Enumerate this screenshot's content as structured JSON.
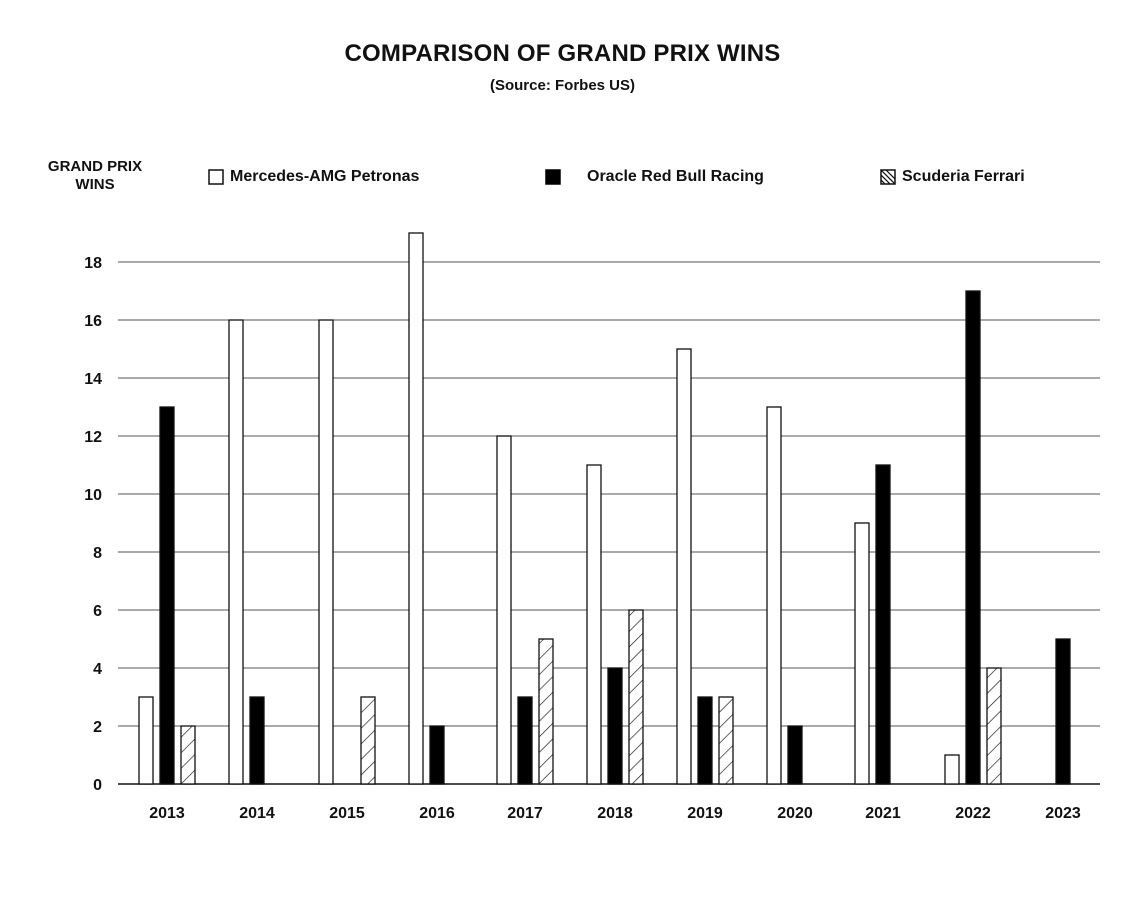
{
  "chart_data": {
    "type": "bar",
    "title": "COMPARISON OF GRAND PRIX WINS",
    "subtitle": "(Source: Forbes US)",
    "ylabel": "GRAND PRIX WINS",
    "xlabel": "",
    "categories": [
      "2013",
      "2014",
      "2015",
      "2016",
      "2017",
      "2018",
      "2019",
      "2020",
      "2021",
      "2022",
      "2023"
    ],
    "series": [
      {
        "name": "Mercedes-AMG Petronas",
        "fill": "white",
        "values": [
          3,
          16,
          16,
          19,
          12,
          11,
          15,
          13,
          9,
          1,
          0
        ]
      },
      {
        "name": "Oracle Red Bull Racing",
        "fill": "black",
        "values": [
          13,
          3,
          0,
          2,
          3,
          4,
          3,
          2,
          11,
          17,
          5
        ]
      },
      {
        "name": "Scuderia Ferrari",
        "fill": "hatched",
        "values": [
          2,
          0,
          3,
          0,
          5,
          6,
          3,
          0,
          0,
          4,
          0
        ]
      }
    ],
    "ylim": [
      0,
      19
    ],
    "yticks": [
      "0",
      "2",
      "4",
      "6",
      "8",
      "10",
      "12",
      "14",
      "16",
      "18"
    ],
    "grid": true,
    "legend_position": "top"
  },
  "colors": {
    "bar_outline": "#111111",
    "black_fill": "#000000",
    "white_fill": "#ffffff",
    "grid": "#555555"
  }
}
